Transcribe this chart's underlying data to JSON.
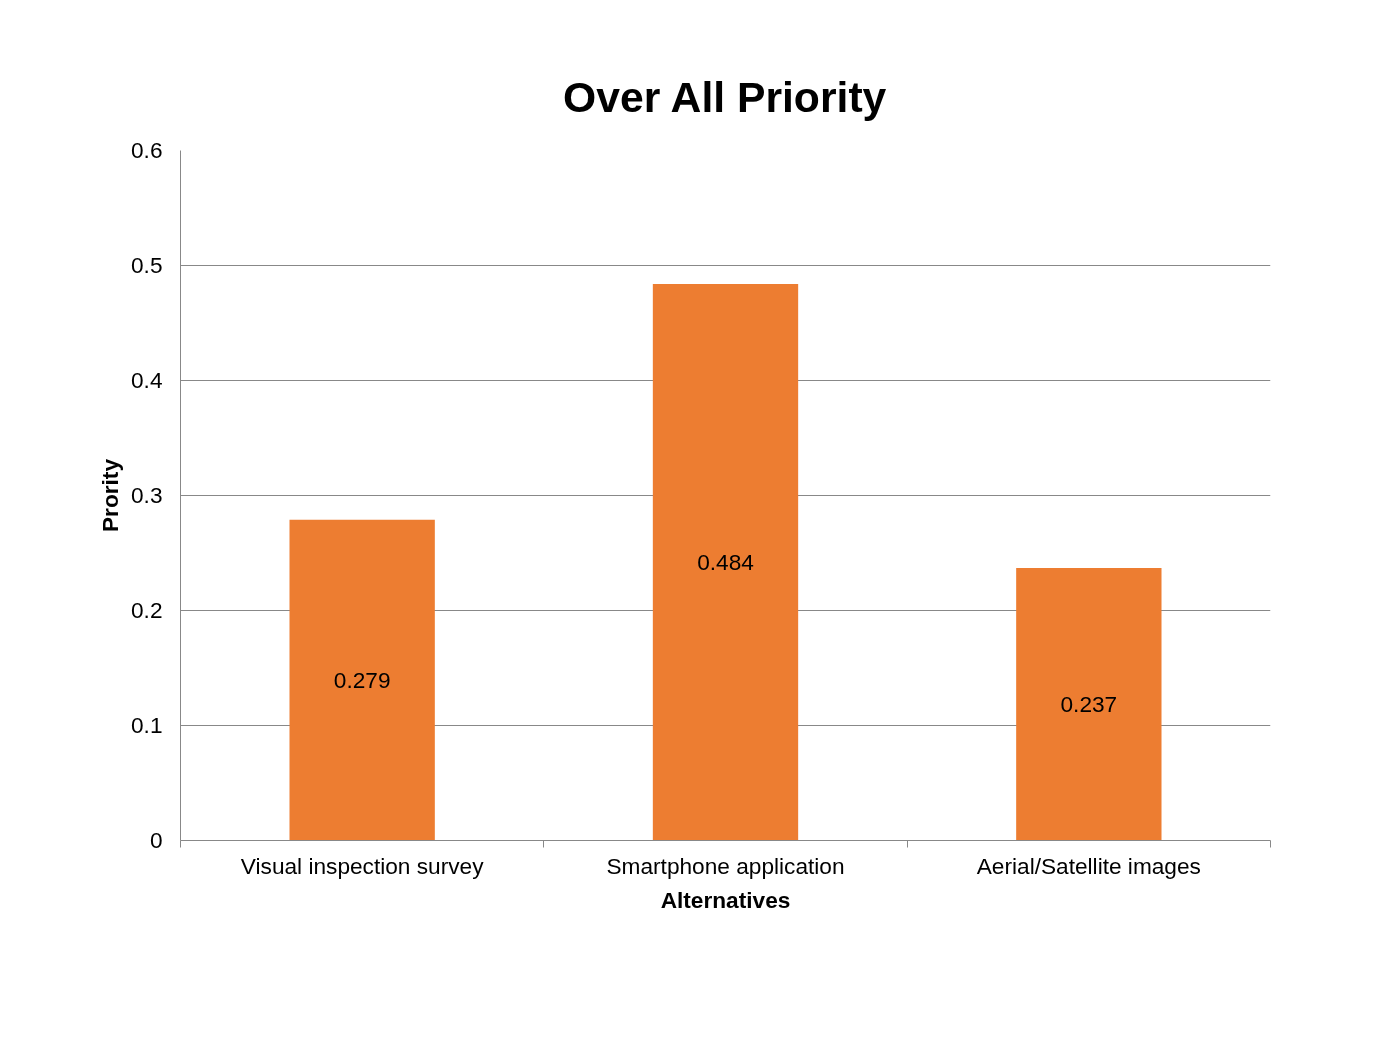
{
  "chart_data": {
    "type": "bar",
    "title": "Over All Priority",
    "xlabel": "Alternatives",
    "ylabel": "Prority",
    "categories": [
      "Visual inspection survey",
      "Smartphone application",
      "Aerial/Satellite images"
    ],
    "values": [
      0.279,
      0.484,
      0.237
    ],
    "color": "#ed7d31",
    "ylim": [
      0,
      0.6
    ],
    "yticks": [
      0,
      0.1,
      0.2,
      0.3,
      0.4,
      0.5,
      0.6
    ],
    "grid": "y",
    "data_labels": true
  }
}
